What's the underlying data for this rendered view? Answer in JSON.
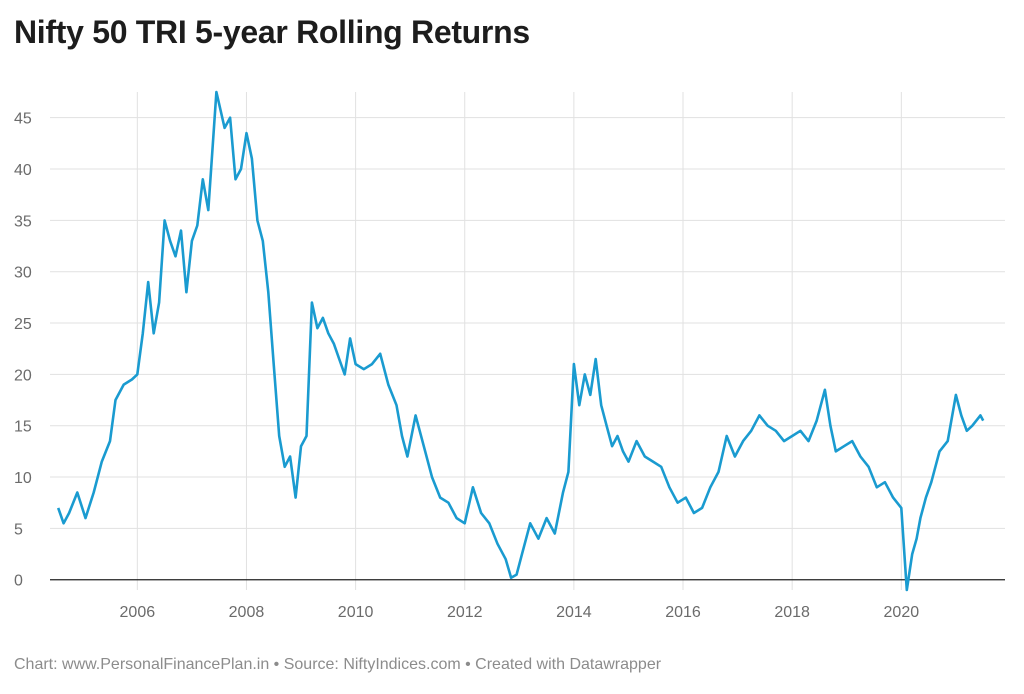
{
  "title": "Nifty 50 TRI 5-year Rolling Returns",
  "footer": "Chart: www.PersonalFinancePlan.in • Source: NiftyIndices.com • Created with Datawrapper",
  "colors": {
    "line": "#1a9bd0",
    "grid": "#e1e1e1",
    "axis": "#222222"
  },
  "chart_data": {
    "type": "line",
    "title": "Nifty 50 TRI 5-year Rolling Returns",
    "xlabel": "",
    "ylabel": "",
    "xlim": [
      2004.4,
      2021.9
    ],
    "ylim": [
      -1,
      47.5
    ],
    "grid": true,
    "y_ticks": [
      0,
      5,
      10,
      15,
      20,
      25,
      30,
      35,
      40,
      45
    ],
    "x_ticks": [
      2006,
      2008,
      2010,
      2012,
      2014,
      2016,
      2018,
      2020
    ],
    "series": [
      {
        "x": [
          2004.55,
          2004.65,
          2004.75,
          2004.9,
          2005.05,
          2005.2,
          2005.35,
          2005.5,
          2005.6,
          2005.75,
          2005.9,
          2006.0,
          2006.1,
          2006.2,
          2006.3,
          2006.4,
          2006.5,
          2006.6,
          2006.7,
          2006.8,
          2006.9,
          2007.0,
          2007.1,
          2007.2,
          2007.3,
          2007.45,
          2007.6,
          2007.7,
          2007.8,
          2007.9,
          2008.0,
          2008.1,
          2008.2,
          2008.3,
          2008.4,
          2008.5,
          2008.6,
          2008.7,
          2008.8,
          2008.9,
          2009.0,
          2009.1,
          2009.2,
          2009.3,
          2009.4,
          2009.5,
          2009.6,
          2009.7,
          2009.8,
          2009.9,
          2010.0,
          2010.15,
          2010.3,
          2010.45,
          2010.6,
          2010.75,
          2010.85,
          2010.95,
          2011.1,
          2011.25,
          2011.4,
          2011.55,
          2011.7,
          2011.85,
          2012.0,
          2012.15,
          2012.3,
          2012.45,
          2012.6,
          2012.75,
          2012.85,
          2012.95,
          2013.05,
          2013.2,
          2013.35,
          2013.5,
          2013.65,
          2013.8,
          2013.9,
          2014.0,
          2014.1,
          2014.2,
          2014.3,
          2014.4,
          2014.5,
          2014.6,
          2014.7,
          2014.8,
          2014.9,
          2015.0,
          2015.15,
          2015.3,
          2015.45,
          2015.6,
          2015.75,
          2015.9,
          2016.05,
          2016.2,
          2016.35,
          2016.5,
          2016.65,
          2016.8,
          2016.95,
          2017.1,
          2017.25,
          2017.4,
          2017.55,
          2017.7,
          2017.85,
          2018.0,
          2018.15,
          2018.3,
          2018.45,
          2018.6,
          2018.7,
          2018.8,
          2018.95,
          2019.1,
          2019.25,
          2019.4,
          2019.55,
          2019.7,
          2019.85,
          2020.0,
          2020.1,
          2020.2,
          2020.28,
          2020.35,
          2020.45,
          2020.55,
          2020.7,
          2020.85,
          2021.0,
          2021.1,
          2021.2,
          2021.3,
          2021.45,
          2021.5
        ],
        "y": [
          7.0,
          5.5,
          6.5,
          8.5,
          6.0,
          8.5,
          11.5,
          13.5,
          17.5,
          19.0,
          19.5,
          20.0,
          24.0,
          29.0,
          24.0,
          27.0,
          35.0,
          33.0,
          31.5,
          34.0,
          28.0,
          33.0,
          34.5,
          39.0,
          36.0,
          47.5,
          44.0,
          45.0,
          39.0,
          40.0,
          43.5,
          41.0,
          35.0,
          33.0,
          28.0,
          21.0,
          14.0,
          11.0,
          12.0,
          8.0,
          13.0,
          14.0,
          27.0,
          24.5,
          25.5,
          24.0,
          23.0,
          21.5,
          20.0,
          23.5,
          21.0,
          20.5,
          21.0,
          22.0,
          19.0,
          17.0,
          14.0,
          12.0,
          16.0,
          13.0,
          10.0,
          8.0,
          7.5,
          6.0,
          5.5,
          9.0,
          6.5,
          5.5,
          3.5,
          2.0,
          0.2,
          0.5,
          2.5,
          5.5,
          4.0,
          6.0,
          4.5,
          8.5,
          10.5,
          21.0,
          17.0,
          20.0,
          18.0,
          21.5,
          17.0,
          15.0,
          13.0,
          14.0,
          12.5,
          11.5,
          13.5,
          12.0,
          11.5,
          11.0,
          9.0,
          7.5,
          8.0,
          6.5,
          7.0,
          9.0,
          10.5,
          14.0,
          12.0,
          13.5,
          14.5,
          16.0,
          15.0,
          14.5,
          13.5,
          14.0,
          14.5,
          13.5,
          15.5,
          18.5,
          15.0,
          12.5,
          13.0,
          13.5,
          12.0,
          11.0,
          9.0,
          9.5,
          8.0,
          7.0,
          -1.0,
          2.5,
          4.0,
          6.0,
          8.0,
          9.5,
          12.5,
          13.5,
          18.0,
          16.0,
          14.5,
          15.0,
          16.0,
          15.5
        ]
      }
    ]
  }
}
